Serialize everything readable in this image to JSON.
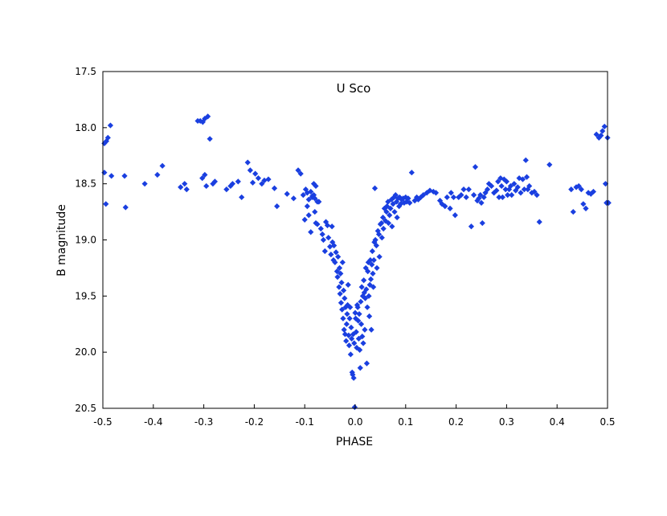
{
  "chart_data": {
    "type": "scatter",
    "title": "U Sco",
    "xlabel": "PHASE",
    "ylabel": "B magnitude",
    "xlim": [
      -0.5,
      0.5
    ],
    "ylim": [
      17.5,
      20.5
    ],
    "y_inverted": true,
    "grid": false,
    "legend": "none",
    "marker": "diamond",
    "marker_color": "#1a3fe0",
    "x_ticks": [
      "-0.5",
      "-0.4",
      "-0.3",
      "-0.2",
      "-0.1",
      "0.0",
      "0.1",
      "0.2",
      "0.3",
      "0.4",
      "0.5"
    ],
    "y_ticks": [
      "17.5",
      "18.0",
      "18.5",
      "19.0",
      "19.5",
      "20.0",
      "20.5"
    ],
    "points": [
      [
        -0.497,
        18.14
      ],
      [
        -0.493,
        18.12
      ],
      [
        -0.49,
        18.09
      ],
      [
        -0.485,
        17.98
      ],
      [
        -0.483,
        18.43
      ],
      [
        -0.497,
        18.4
      ],
      [
        -0.494,
        18.68
      ],
      [
        -0.457,
        18.43
      ],
      [
        -0.455,
        18.71
      ],
      [
        -0.417,
        18.5
      ],
      [
        -0.392,
        18.42
      ],
      [
        -0.382,
        18.34
      ],
      [
        -0.346,
        18.53
      ],
      [
        -0.338,
        18.5
      ],
      [
        -0.334,
        18.55
      ],
      [
        -0.312,
        17.94
      ],
      [
        -0.307,
        17.94
      ],
      [
        -0.302,
        17.95
      ],
      [
        -0.298,
        17.92
      ],
      [
        -0.292,
        17.9
      ],
      [
        -0.288,
        18.1
      ],
      [
        -0.303,
        18.45
      ],
      [
        -0.298,
        18.42
      ],
      [
        -0.295,
        18.52
      ],
      [
        -0.282,
        18.5
      ],
      [
        -0.278,
        18.48
      ],
      [
        -0.255,
        18.55
      ],
      [
        -0.247,
        18.52
      ],
      [
        -0.243,
        18.5
      ],
      [
        -0.232,
        18.48
      ],
      [
        -0.225,
        18.62
      ],
      [
        -0.213,
        18.31
      ],
      [
        -0.208,
        18.38
      ],
      [
        -0.203,
        18.49
      ],
      [
        -0.198,
        18.41
      ],
      [
        -0.192,
        18.45
      ],
      [
        -0.185,
        18.5
      ],
      [
        -0.18,
        18.47
      ],
      [
        -0.172,
        18.46
      ],
      [
        -0.16,
        18.54
      ],
      [
        -0.155,
        18.7
      ],
      [
        -0.135,
        18.59
      ],
      [
        -0.122,
        18.63
      ],
      [
        -0.113,
        18.38
      ],
      [
        -0.108,
        18.41
      ],
      [
        -0.103,
        18.6
      ],
      [
        -0.098,
        18.55
      ],
      [
        -0.095,
        18.58
      ],
      [
        -0.092,
        18.64
      ],
      [
        -0.088,
        18.57
      ],
      [
        -0.085,
        18.61
      ],
      [
        -0.082,
        18.5
      ],
      [
        -0.08,
        18.63
      ],
      [
        -0.078,
        18.52
      ],
      [
        -0.075,
        18.66
      ],
      [
        -0.1,
        18.82
      ],
      [
        -0.095,
        18.7
      ],
      [
        -0.092,
        18.78
      ],
      [
        -0.088,
        18.93
      ],
      [
        -0.085,
        18.62
      ],
      [
        -0.082,
        18.6
      ],
      [
        -0.08,
        18.75
      ],
      [
        -0.078,
        18.85
      ],
      [
        -0.075,
        18.86
      ],
      [
        -0.072,
        18.66
      ],
      [
        -0.068,
        18.9
      ],
      [
        -0.065,
        18.95
      ],
      [
        -0.063,
        19.0
      ],
      [
        -0.06,
        19.1
      ],
      [
        -0.058,
        18.84
      ],
      [
        -0.055,
        18.87
      ],
      [
        -0.053,
        18.98
      ],
      [
        -0.05,
        19.06
      ],
      [
        -0.048,
        19.13
      ],
      [
        -0.046,
        18.88
      ],
      [
        -0.045,
        19.02
      ],
      [
        -0.043,
        19.18
      ],
      [
        -0.042,
        19.05
      ],
      [
        -0.04,
        19.2
      ],
      [
        -0.038,
        19.11
      ],
      [
        -0.036,
        19.28
      ],
      [
        -0.035,
        19.33
      ],
      [
        -0.034,
        19.15
      ],
      [
        -0.032,
        19.42
      ],
      [
        -0.031,
        19.25
      ],
      [
        -0.03,
        19.48
      ],
      [
        -0.029,
        19.3
      ],
      [
        -0.028,
        19.56
      ],
      [
        -0.027,
        19.38
      ],
      [
        -0.026,
        19.62
      ],
      [
        -0.025,
        19.2
      ],
      [
        -0.024,
        19.7
      ],
      [
        -0.023,
        19.45
      ],
      [
        -0.022,
        19.8
      ],
      [
        -0.021,
        19.52
      ],
      [
        -0.02,
        19.84
      ],
      [
        -0.019,
        19.6
      ],
      [
        -0.018,
        19.9
      ],
      [
        -0.017,
        19.75
      ],
      [
        -0.016,
        19.66
      ],
      [
        -0.015,
        19.58
      ],
      [
        -0.014,
        19.4
      ],
      [
        -0.013,
        19.85
      ],
      [
        -0.012,
        19.94
      ],
      [
        -0.011,
        19.7
      ],
      [
        -0.01,
        19.6
      ],
      [
        -0.009,
        20.02
      ],
      [
        -0.008,
        19.78
      ],
      [
        -0.007,
        19.88
      ],
      [
        -0.006,
        20.18
      ],
      [
        -0.005,
        20.2
      ],
      [
        -0.004,
        19.84
      ],
      [
        -0.003,
        20.23
      ],
      [
        -0.002,
        19.92
      ],
      [
        -0.001,
        20.49
      ],
      [
        0.0,
        19.65
      ],
      [
        0.001,
        19.7
      ],
      [
        0.002,
        19.82
      ],
      [
        0.003,
        19.96
      ],
      [
        0.004,
        19.58
      ],
      [
        0.005,
        19.6
      ],
      [
        0.006,
        19.72
      ],
      [
        0.007,
        19.88
      ],
      [
        0.008,
        19.66
      ],
      [
        0.009,
        19.98
      ],
      [
        0.01,
        20.14
      ],
      [
        0.011,
        19.55
      ],
      [
        0.012,
        19.75
      ],
      [
        0.013,
        19.42
      ],
      [
        0.014,
        19.86
      ],
      [
        0.015,
        19.5
      ],
      [
        0.016,
        19.92
      ],
      [
        0.017,
        19.36
      ],
      [
        0.018,
        19.47
      ],
      [
        0.019,
        19.8
      ],
      [
        0.02,
        19.52
      ],
      [
        0.021,
        19.25
      ],
      [
        0.022,
        19.44
      ],
      [
        0.023,
        20.1
      ],
      [
        0.024,
        19.6
      ],
      [
        0.025,
        19.28
      ],
      [
        0.026,
        19.2
      ],
      [
        0.027,
        19.5
      ],
      [
        0.028,
        19.68
      ],
      [
        0.029,
        19.4
      ],
      [
        0.03,
        19.18
      ],
      [
        0.031,
        19.35
      ],
      [
        0.032,
        19.8
      ],
      [
        0.033,
        19.22
      ],
      [
        0.034,
        19.1
      ],
      [
        0.035,
        19.3
      ],
      [
        0.036,
        19.42
      ],
      [
        0.037,
        19.18
      ],
      [
        0.038,
        19.02
      ],
      [
        0.039,
        18.54
      ],
      [
        0.04,
        19.0
      ],
      [
        0.042,
        19.05
      ],
      [
        0.043,
        19.25
      ],
      [
        0.045,
        18.92
      ],
      [
        0.047,
        18.95
      ],
      [
        0.048,
        19.15
      ],
      [
        0.05,
        18.86
      ],
      [
        0.052,
        18.85
      ],
      [
        0.053,
        18.98
      ],
      [
        0.055,
        18.8
      ],
      [
        0.056,
        18.9
      ],
      [
        0.058,
        18.72
      ],
      [
        0.06,
        18.83
      ],
      [
        0.062,
        18.75
      ],
      [
        0.063,
        18.7
      ],
      [
        0.065,
        18.66
      ],
      [
        0.066,
        18.85
      ],
      [
        0.068,
        18.78
      ],
      [
        0.07,
        18.72
      ],
      [
        0.072,
        18.64
      ],
      [
        0.073,
        18.88
      ],
      [
        0.075,
        18.68
      ],
      [
        0.077,
        18.62
      ],
      [
        0.078,
        18.75
      ],
      [
        0.08,
        18.6
      ],
      [
        0.082,
        18.66
      ],
      [
        0.083,
        18.8
      ],
      [
        0.085,
        18.63
      ],
      [
        0.087,
        18.7
      ],
      [
        0.088,
        18.62
      ],
      [
        0.09,
        18.68
      ],
      [
        0.092,
        18.64
      ],
      [
        0.095,
        18.63
      ],
      [
        0.097,
        18.67
      ],
      [
        0.1,
        18.62
      ],
      [
        0.102,
        18.66
      ],
      [
        0.105,
        18.63
      ],
      [
        0.108,
        18.67
      ],
      [
        0.112,
        18.4
      ],
      [
        0.118,
        18.65
      ],
      [
        0.122,
        18.62
      ],
      [
        0.125,
        18.64
      ],
      [
        0.13,
        18.62
      ],
      [
        0.135,
        18.6
      ],
      [
        0.142,
        18.58
      ],
      [
        0.148,
        18.56
      ],
      [
        0.155,
        18.57
      ],
      [
        0.16,
        18.58
      ],
      [
        0.168,
        18.65
      ],
      [
        0.172,
        18.68
      ],
      [
        0.178,
        18.7
      ],
      [
        0.182,
        18.62
      ],
      [
        0.188,
        18.72
      ],
      [
        0.19,
        18.58
      ],
      [
        0.195,
        18.62
      ],
      [
        0.198,
        18.78
      ],
      [
        0.205,
        18.62
      ],
      [
        0.21,
        18.6
      ],
      [
        0.215,
        18.55
      ],
      [
        0.22,
        18.62
      ],
      [
        0.225,
        18.55
      ],
      [
        0.23,
        18.88
      ],
      [
        0.235,
        18.6
      ],
      [
        0.238,
        18.35
      ],
      [
        0.242,
        18.65
      ],
      [
        0.245,
        18.63
      ],
      [
        0.248,
        18.6
      ],
      [
        0.25,
        18.67
      ],
      [
        0.252,
        18.85
      ],
      [
        0.255,
        18.62
      ],
      [
        0.258,
        18.58
      ],
      [
        0.262,
        18.55
      ],
      [
        0.265,
        18.5
      ],
      [
        0.27,
        18.52
      ],
      [
        0.275,
        18.58
      ],
      [
        0.28,
        18.56
      ],
      [
        0.283,
        18.48
      ],
      [
        0.285,
        18.62
      ],
      [
        0.288,
        18.45
      ],
      [
        0.29,
        18.52
      ],
      [
        0.292,
        18.62
      ],
      [
        0.295,
        18.46
      ],
      [
        0.298,
        18.55
      ],
      [
        0.3,
        18.48
      ],
      [
        0.302,
        18.6
      ],
      [
        0.305,
        18.55
      ],
      [
        0.308,
        18.52
      ],
      [
        0.31,
        18.6
      ],
      [
        0.315,
        18.5
      ],
      [
        0.318,
        18.56
      ],
      [
        0.322,
        18.53
      ],
      [
        0.325,
        18.45
      ],
      [
        0.328,
        18.58
      ],
      [
        0.332,
        18.46
      ],
      [
        0.335,
        18.55
      ],
      [
        0.338,
        18.29
      ],
      [
        0.34,
        18.44
      ],
      [
        0.342,
        18.55
      ],
      [
        0.345,
        18.52
      ],
      [
        0.35,
        18.58
      ],
      [
        0.355,
        18.57
      ],
      [
        0.36,
        18.6
      ],
      [
        0.365,
        18.84
      ],
      [
        0.385,
        18.33
      ],
      [
        0.428,
        18.55
      ],
      [
        0.432,
        18.75
      ],
      [
        0.438,
        18.53
      ],
      [
        0.443,
        18.52
      ],
      [
        0.448,
        18.55
      ],
      [
        0.452,
        18.68
      ],
      [
        0.457,
        18.72
      ],
      [
        0.462,
        18.58
      ],
      [
        0.467,
        18.59
      ],
      [
        0.472,
        18.57
      ],
      [
        0.478,
        18.06
      ],
      [
        0.483,
        18.09
      ],
      [
        0.487,
        18.07
      ],
      [
        0.49,
        18.03
      ],
      [
        0.494,
        17.99
      ],
      [
        0.496,
        18.5
      ],
      [
        0.498,
        18.67
      ],
      [
        0.5,
        18.09
      ],
      [
        0.502,
        18.67
      ]
    ]
  }
}
